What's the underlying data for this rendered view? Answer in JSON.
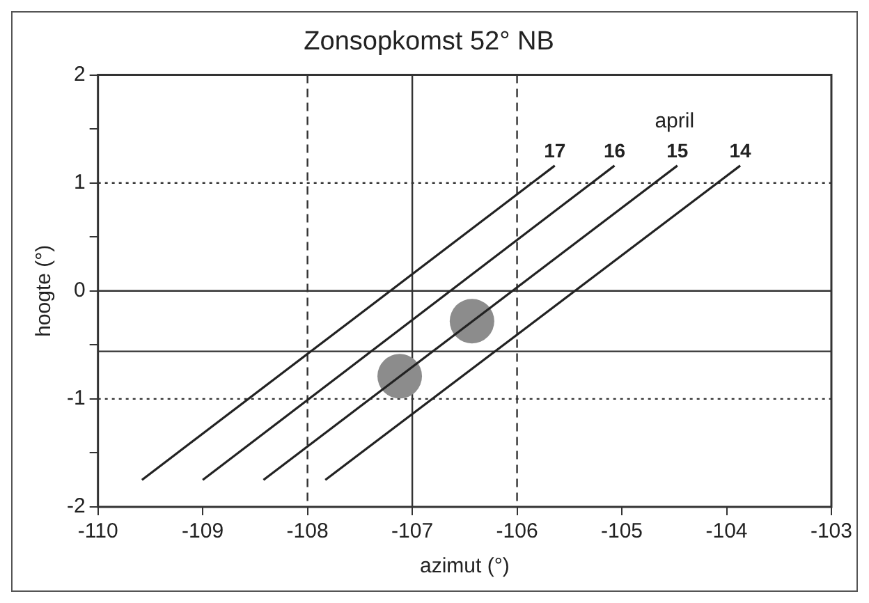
{
  "chart_data": {
    "type": "line",
    "title": "Zonsopkomst 52° NB",
    "xlabel": "azimut (°)",
    "ylabel": "hoogte (°)",
    "xlim": [
      -110,
      -103
    ],
    "xticks": [
      -110,
      -109,
      -108,
      -107,
      -106,
      -105,
      -104,
      -103
    ],
    "ylim": [
      -2,
      2
    ],
    "yticks": [
      -2,
      {
        "value": -1.5,
        "label": null
      },
      -1,
      {
        "value": -0.5,
        "label": null
      },
      0,
      {
        "value": 0.5,
        "label": null
      },
      1,
      {
        "value": 1.5,
        "label": null
      },
      2
    ],
    "grid": false,
    "legend": false,
    "marker": "none",
    "line_style": "solid",
    "annotations": [
      "april"
    ],
    "series": [
      {
        "name": "17",
        "color": "#222222",
        "x": [
          -109.58,
          -105.64
        ],
        "values": [
          -1.75,
          1.16
        ]
      },
      {
        "name": "16",
        "color": "#222222",
        "x": [
          -109.0,
          -105.07
        ],
        "values": [
          -1.75,
          1.16
        ]
      },
      {
        "name": "15",
        "color": "#222222",
        "x": [
          -108.42,
          -104.47
        ],
        "values": [
          -1.75,
          1.16
        ]
      },
      {
        "name": "14",
        "color": "#222222",
        "x": [
          -107.83,
          -103.87
        ],
        "values": [
          -1.75,
          1.16
        ]
      },
      {
        "type": "scatter",
        "color": "#8c8c8c",
        "marker": "circle",
        "x": [
          -107.12,
          -106.43
        ],
        "values": [
          -0.79,
          -0.28
        ]
      }
    ],
    "ref_lines": [
      {
        "axis": "y",
        "value": 1,
        "line_style": "dotted"
      },
      {
        "axis": "y",
        "value": -1,
        "line_style": "dotted"
      },
      {
        "axis": "y",
        "value": 0,
        "line_style": "solid"
      },
      {
        "axis": "y",
        "value": -0.56,
        "line_style": "solid"
      },
      {
        "axis": "x",
        "value": -108,
        "line_style": "dashed"
      },
      {
        "axis": "x",
        "value": -107,
        "line_style": "solid"
      },
      {
        "axis": "x",
        "value": -106,
        "line_style": "dashed"
      }
    ]
  }
}
